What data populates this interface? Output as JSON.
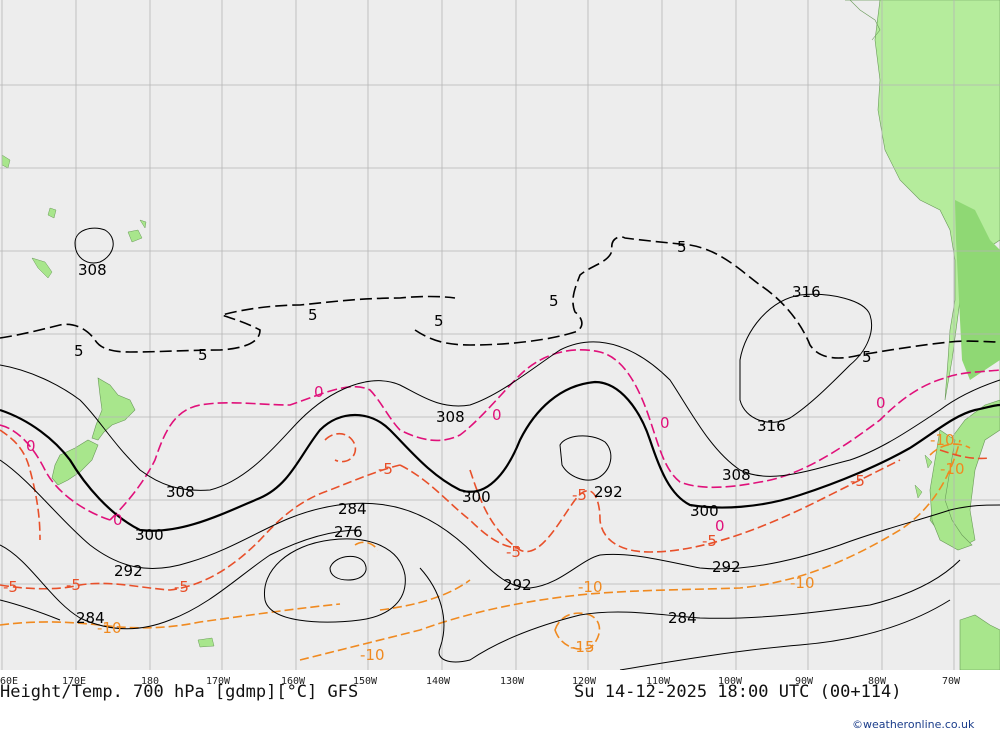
{
  "map": {
    "title_left": "Height/Temp. 700 hPa [gdmp][°C] GFS",
    "title_right": "Su 14-12-2025 18:00 UTC (00+114)",
    "credit": "©weatheronline.co.uk",
    "colors": {
      "ocean": "#ededed",
      "land": "#a8e68c",
      "land_high": "#8fd874",
      "grid": "#b5b5b5",
      "height_contour": "#000000",
      "temp_minus5": "#000000",
      "temp_0": "#e0107a",
      "temp_minus5_red": "#e8502a",
      "temp_minus10": "#f08a20"
    },
    "longitude_ticks": [
      "60E",
      "170E",
      "180",
      "170W",
      "160W",
      "150W",
      "140W",
      "130W",
      "120W",
      "110W",
      "100W",
      "90W",
      "80W",
      "70W"
    ],
    "height_labels": [
      "308",
      "316",
      "316",
      "308",
      "308",
      "308",
      "300",
      "300",
      "300",
      "292",
      "292",
      "292",
      "292",
      "284",
      "284",
      "284",
      "276"
    ],
    "temp_labels_black": [
      "5",
      "5",
      "5",
      "5",
      "5",
      "5",
      "5"
    ],
    "temp_labels_pink": [
      "0",
      "0",
      "0",
      "0",
      "0",
      "0",
      "0"
    ],
    "temp_labels_red": [
      "-5",
      "-5",
      "-5",
      "-5",
      "-5",
      "-5",
      "-5",
      "-5"
    ],
    "temp_labels_orange": [
      "-10",
      "-10",
      "-10",
      "-10",
      "-10",
      "-10",
      "-15"
    ]
  }
}
